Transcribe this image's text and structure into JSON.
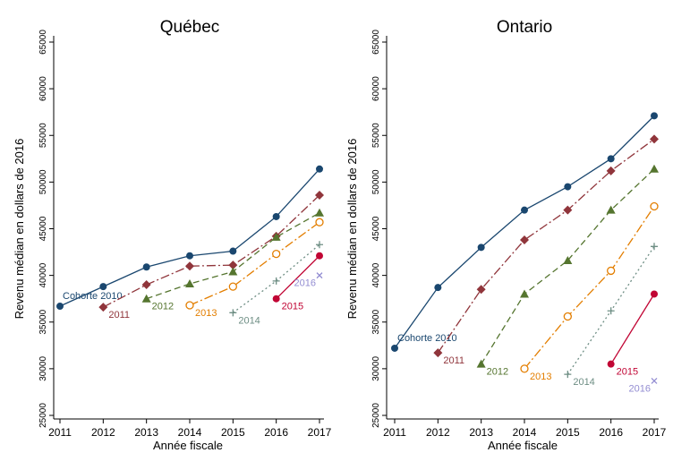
{
  "chart_data": [
    {
      "type": "line",
      "title": "Québec",
      "xlabel": "Année fiscale",
      "ylabel": "Revenu médian en dollars de 2016",
      "x": [
        2011,
        2012,
        2013,
        2014,
        2015,
        2016,
        2017
      ],
      "xlim": [
        2011,
        2017
      ],
      "xticks": [
        2011,
        2012,
        2013,
        2014,
        2015,
        2016,
        2017
      ],
      "ylim": [
        25000,
        65000
      ],
      "yticks": [
        25000,
        30000,
        35000,
        40000,
        45000,
        50000,
        55000,
        60000,
        65000
      ],
      "series": [
        {
          "name": "Cohorte 2010",
          "color": "#1a476f",
          "marker": "circle",
          "dash": "solid",
          "values": [
            36700,
            38800,
            40900,
            42100,
            42600,
            46300,
            51400
          ]
        },
        {
          "name": "2011",
          "color": "#90353b",
          "marker": "diamond",
          "dash": "dashdot",
          "values": [
            null,
            36600,
            39000,
            41000,
            41100,
            44200,
            48600
          ]
        },
        {
          "name": "2012",
          "color": "#55752f",
          "marker": "triangle",
          "dash": "dash",
          "values": [
            null,
            null,
            37500,
            39100,
            40400,
            44100,
            46700
          ]
        },
        {
          "name": "2013",
          "color": "#e37e00",
          "marker": "hollow-circle",
          "dash": "dashdot",
          "values": [
            null,
            null,
            null,
            36800,
            38800,
            42300,
            45700
          ]
        },
        {
          "name": "2014",
          "color": "#6e8e84",
          "marker": "plus",
          "dash": "dot",
          "values": [
            null,
            null,
            null,
            null,
            36000,
            39400,
            43300
          ]
        },
        {
          "name": "2015",
          "color": "#c10534",
          "marker": "circle",
          "dash": "solid",
          "values": [
            null,
            null,
            null,
            null,
            null,
            37500,
            42100
          ]
        },
        {
          "name": "2016",
          "color": "#938dd2",
          "marker": "x",
          "dash": "solid",
          "values": [
            null,
            null,
            null,
            null,
            null,
            null,
            40000
          ]
        }
      ]
    },
    {
      "type": "line",
      "title": "Ontario",
      "xlabel": "Année fiscale",
      "ylabel": "Revenu médian en dollars de 2016",
      "x": [
        2011,
        2012,
        2013,
        2014,
        2015,
        2016,
        2017
      ],
      "xlim": [
        2011,
        2017
      ],
      "xticks": [
        2011,
        2012,
        2013,
        2014,
        2015,
        2016,
        2017
      ],
      "ylim": [
        25000,
        65000
      ],
      "yticks": [
        25000,
        30000,
        35000,
        40000,
        45000,
        50000,
        55000,
        60000,
        65000
      ],
      "series": [
        {
          "name": "Cohorte 2010",
          "color": "#1a476f",
          "marker": "circle",
          "dash": "solid",
          "values": [
            32200,
            38700,
            43000,
            47000,
            49500,
            52500,
            57100
          ]
        },
        {
          "name": "2011",
          "color": "#90353b",
          "marker": "diamond",
          "dash": "dashdot",
          "values": [
            null,
            31700,
            38500,
            43800,
            47000,
            51200,
            54600
          ]
        },
        {
          "name": "2012",
          "color": "#55752f",
          "marker": "triangle",
          "dash": "dash",
          "values": [
            null,
            null,
            30500,
            38000,
            41600,
            47000,
            51400
          ]
        },
        {
          "name": "2013",
          "color": "#e37e00",
          "marker": "hollow-circle",
          "dash": "dashdot",
          "values": [
            null,
            null,
            null,
            30000,
            35600,
            40500,
            47400
          ]
        },
        {
          "name": "2014",
          "color": "#6e8e84",
          "marker": "plus",
          "dash": "dot",
          "values": [
            null,
            null,
            null,
            null,
            29400,
            36200,
            43100
          ]
        },
        {
          "name": "2015",
          "color": "#c10534",
          "marker": "circle",
          "dash": "solid",
          "values": [
            null,
            null,
            null,
            null,
            null,
            30500,
            38000
          ]
        },
        {
          "name": "2016",
          "color": "#938dd2",
          "marker": "x",
          "dash": "solid",
          "values": [
            null,
            null,
            null,
            null,
            null,
            null,
            28700
          ]
        }
      ]
    }
  ]
}
